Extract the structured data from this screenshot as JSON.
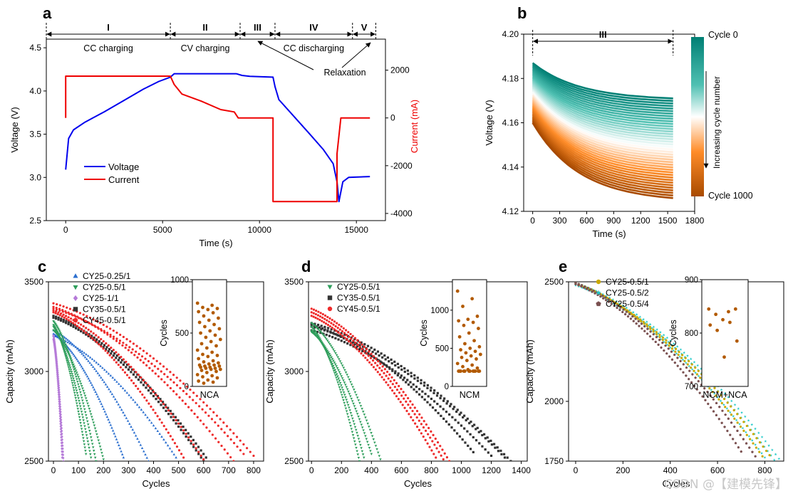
{
  "watermark": "CSDN @【建模先锋】",
  "chart_data": [
    {
      "id": "a",
      "panel_letter": "a",
      "type": "line",
      "xlabel": "Time (s)",
      "ylabel": "Voltage (V)",
      "y2label": "Current (mA)",
      "xlim": [
        -1000,
        16500
      ],
      "ylim": [
        2.5,
        4.6
      ],
      "y2lim": [
        -4300,
        3300
      ],
      "xticks": [
        0,
        5000,
        10000,
        15000
      ],
      "yticks": [
        2.5,
        3.0,
        3.5,
        4.0,
        4.5
      ],
      "y2ticks": [
        -4000,
        -2000,
        0,
        2000
      ],
      "phases": [
        {
          "label": "I",
          "desc": "CC charging",
          "range": [
            -1000,
            5400
          ]
        },
        {
          "label": "II",
          "desc": "CV charging",
          "range": [
            5400,
            9000
          ]
        },
        {
          "label": "III",
          "desc": "",
          "range": [
            9000,
            10800
          ]
        },
        {
          "label": "IV",
          "desc": "CC discharging",
          "range": [
            10800,
            14800
          ]
        },
        {
          "label": "V",
          "desc": "",
          "range": [
            14800,
            16000
          ]
        }
      ],
      "annotation": "Relaxation",
      "series": [
        {
          "name": "Voltage",
          "axis": "left",
          "color": "#0000ee",
          "x": [
            0,
            150,
            400,
            1000,
            2000,
            3000,
            4000,
            4800,
            5400,
            5600,
            6500,
            8800,
            9100,
            9500,
            10700,
            10800,
            11000,
            11800,
            12600,
            13300,
            13800,
            14000,
            14100,
            14300,
            14600,
            15700
          ],
          "y": [
            3.09,
            3.45,
            3.55,
            3.64,
            3.76,
            3.89,
            4.02,
            4.11,
            4.16,
            4.2,
            4.2,
            4.2,
            4.18,
            4.17,
            4.16,
            4.05,
            3.9,
            3.7,
            3.5,
            3.32,
            3.16,
            2.95,
            2.72,
            2.95,
            3.0,
            3.01
          ]
        },
        {
          "name": "Current",
          "axis": "right",
          "color": "#ee0000",
          "x": [
            0,
            0,
            5400,
            5600,
            6000,
            7000,
            8000,
            8700,
            8900,
            9000,
            10700,
            10700,
            14000,
            14000,
            14200,
            15700
          ],
          "y": [
            0,
            1750,
            1750,
            1400,
            1000,
            700,
            350,
            250,
            0,
            0,
            0,
            -3500,
            -3500,
            -1500,
            0,
            0
          ]
        }
      ]
    },
    {
      "id": "b",
      "panel_letter": "b",
      "type": "line",
      "xlabel": "Time (s)",
      "ylabel": "Voltage (V)",
      "xlim": [
        -100,
        1800
      ],
      "ylim": [
        4.12,
        4.2
      ],
      "xticks": [
        0,
        300,
        600,
        900,
        1200,
        1500,
        1800
      ],
      "yticks": [
        4.12,
        4.14,
        4.16,
        4.18,
        4.2
      ],
      "phase_label": "III",
      "colorbar": {
        "top": "Cycle 0",
        "bottom": "Cycle 1000",
        "caption": "Increasing cycle number",
        "colors": [
          "#007f74",
          "#4fc0b2",
          "#ffffff",
          "#ff8c28",
          "#a84a00"
        ]
      },
      "series_rule": {
        "count": 40,
        "cycle_range": [
          0,
          1000
        ],
        "start_voltage": [
          4.187,
          4.16
        ],
        "end_voltage": [
          4.171,
          4.126
        ],
        "x_end": 1560
      }
    },
    {
      "id": "c",
      "panel_letter": "c",
      "type": "scatter",
      "xlabel": "Cycles",
      "ylabel": "Capacity (mAh)",
      "xlim": [
        -20,
        840
      ],
      "ylim": [
        2500,
        3500
      ],
      "xticks": [
        0,
        100,
        200,
        300,
        400,
        500,
        600,
        700,
        800
      ],
      "yticks": [
        2500,
        3000,
        3500
      ],
      "legend": [
        {
          "name": "CY25-0.25/1",
          "color": "#2b6fcf",
          "marker": "triangle"
        },
        {
          "name": "CY25-0.5/1",
          "color": "#2e9e5b",
          "marker": "triangle-down"
        },
        {
          "name": "CY25-1/1",
          "color": "#b57ad8",
          "marker": "diamond"
        },
        {
          "name": "CY35-0.5/1",
          "color": "#333333",
          "marker": "square"
        },
        {
          "name": "CY45-0.5/1",
          "color": "#ee2b2b",
          "marker": "circle"
        }
      ],
      "cells": [
        {
          "series": 2,
          "start": 3200,
          "end_cycle": 40,
          "end_cap": 2500
        },
        {
          "series": 2,
          "start": 3180,
          "end_cycle": 35,
          "end_cap": 2520
        },
        {
          "series": 1,
          "start": 3280,
          "end_cycle": 170,
          "end_cap": 2500
        },
        {
          "series": 1,
          "start": 3250,
          "end_cycle": 150,
          "end_cap": 2520
        },
        {
          "series": 1,
          "start": 3230,
          "end_cycle": 200,
          "end_cap": 2510
        },
        {
          "series": 1,
          "start": 3260,
          "end_cycle": 130,
          "end_cap": 2540
        },
        {
          "series": 0,
          "start": 3230,
          "end_cycle": 380,
          "end_cap": 2500
        },
        {
          "series": 0,
          "start": 3200,
          "end_cycle": 490,
          "end_cap": 2520
        },
        {
          "series": 0,
          "start": 3210,
          "end_cycle": 280,
          "end_cap": 2520
        },
        {
          "series": 3,
          "start": 3300,
          "end_cycle": 600,
          "end_cap": 2500
        },
        {
          "series": 3,
          "start": 3310,
          "end_cycle": 610,
          "end_cap": 2520
        },
        {
          "series": 4,
          "start": 3380,
          "end_cycle": 800,
          "end_cap": 2530
        },
        {
          "series": 4,
          "start": 3360,
          "end_cycle": 720,
          "end_cap": 2500
        },
        {
          "series": 4,
          "start": 3340,
          "end_cycle": 600,
          "end_cap": 2510
        },
        {
          "series": 4,
          "start": 3350,
          "end_cycle": 760,
          "end_cap": 2540
        },
        {
          "series": 4,
          "start": 3330,
          "end_cycle": 520,
          "end_cap": 2520
        }
      ],
      "inset": {
        "xlabel": "NCA",
        "ylabel": "Cycles",
        "ylim": [
          0,
          1000
        ],
        "yticks": [
          0,
          500,
          1000
        ],
        "color": "#b25a00",
        "values": [
          780,
          760,
          740,
          730,
          720,
          700,
          690,
          660,
          640,
          620,
          600,
          580,
          560,
          540,
          520,
          500,
          480,
          460,
          440,
          420,
          400,
          380,
          360,
          340,
          320,
          300,
          290,
          280,
          260,
          240,
          230,
          220,
          210,
          200,
          200,
          190,
          190,
          180,
          180,
          170,
          170,
          160,
          160,
          150,
          140,
          130,
          110,
          100,
          90,
          80,
          60,
          50,
          40,
          30
        ]
      }
    },
    {
      "id": "d",
      "panel_letter": "d",
      "type": "scatter",
      "xlabel": "Cycles",
      "ylabel": "Capacity (mAh)",
      "xlim": [
        -20,
        1440
      ],
      "ylim": [
        2500,
        3500
      ],
      "xticks": [
        0,
        200,
        400,
        600,
        800,
        1000,
        1200,
        1400
      ],
      "yticks": [
        2500,
        3000,
        3500
      ],
      "legend": [
        {
          "name": "CY25-0.5/1",
          "color": "#2e9e5b",
          "marker": "triangle-down"
        },
        {
          "name": "CY35-0.5/1",
          "color": "#333333",
          "marker": "square"
        },
        {
          "name": "CY45-0.5/1",
          "color": "#ee2b2b",
          "marker": "circle"
        }
      ],
      "cells": [
        {
          "series": 0,
          "start": 3250,
          "end_cycle": 320,
          "end_cap": 2500
        },
        {
          "series": 0,
          "start": 3230,
          "end_cycle": 350,
          "end_cap": 2520
        },
        {
          "series": 0,
          "start": 3270,
          "end_cycle": 460,
          "end_cap": 2510
        },
        {
          "series": 0,
          "start": 3220,
          "end_cycle": 400,
          "end_cap": 2540
        },
        {
          "series": 1,
          "start": 3270,
          "end_cycle": 1330,
          "end_cap": 2500
        },
        {
          "series": 1,
          "start": 3250,
          "end_cycle": 1290,
          "end_cap": 2520
        },
        {
          "series": 1,
          "start": 3230,
          "end_cycle": 1200,
          "end_cap": 2530
        },
        {
          "series": 1,
          "start": 3260,
          "end_cycle": 1080,
          "end_cap": 2550
        },
        {
          "series": 2,
          "start": 3350,
          "end_cycle": 920,
          "end_cap": 2500
        },
        {
          "series": 2,
          "start": 3330,
          "end_cycle": 880,
          "end_cap": 2510
        },
        {
          "series": 2,
          "start": 3310,
          "end_cycle": 830,
          "end_cap": 2520
        }
      ],
      "inset": {
        "xlabel": "NCM",
        "ylabel": "Cycles",
        "ylim": [
          0,
          1400
        ],
        "yticks": [
          0,
          500,
          1000
        ],
        "color": "#b25a00",
        "values": [
          1250,
          1150,
          1050,
          920,
          880,
          860,
          840,
          800,
          760,
          700,
          650,
          600,
          560,
          520,
          500,
          480,
          460,
          440,
          420,
          400,
          380,
          360,
          340,
          300,
          280,
          260,
          240,
          220,
          200,
          200,
          200,
          200,
          200,
          200,
          200,
          200,
          200,
          200,
          200,
          200
        ]
      }
    },
    {
      "id": "e",
      "panel_letter": "e",
      "type": "scatter",
      "xlabel": "Cycles",
      "ylabel": "Capacity (mAh)",
      "xlim": [
        -30,
        880
      ],
      "ylim": [
        1750,
        2500
      ],
      "xticks": [
        0,
        200,
        400,
        600,
        800
      ],
      "yticks": [
        1750,
        2000,
        2500
      ],
      "legend": [
        {
          "name": "CY25-0.5/1",
          "color": "#c9a800",
          "marker": "circle"
        },
        {
          "name": "CY25-0.5/2",
          "color": "#1fc9c9",
          "marker": "star"
        },
        {
          "name": "CY25-0.5/4",
          "color": "#7a5050",
          "marker": "pentagon"
        }
      ],
      "cells": [
        {
          "series": 1,
          "start": 2490,
          "end_cycle": 840,
          "end_cap": 1755
        },
        {
          "series": 1,
          "start": 2485,
          "end_cycle": 800,
          "end_cap": 1765
        },
        {
          "series": 1,
          "start": 2495,
          "end_cycle": 860,
          "end_cap": 1760
        },
        {
          "series": 0,
          "start": 2490,
          "end_cycle": 820,
          "end_cap": 1775
        },
        {
          "series": 0,
          "start": 2495,
          "end_cycle": 790,
          "end_cap": 1770
        },
        {
          "series": 2,
          "start": 2495,
          "end_cycle": 760,
          "end_cap": 1770
        },
        {
          "series": 2,
          "start": 2490,
          "end_cycle": 700,
          "end_cap": 1790
        }
      ],
      "inset": {
        "xlabel": "NCM+NCA",
        "ylabel": "Cycles",
        "ylim": [
          700,
          900
        ],
        "yticks": [
          700,
          800,
          900
        ],
        "color": "#b25a00",
        "values": [
          845,
          840,
          835,
          845,
          825,
          815,
          820,
          805,
          785,
          755
        ]
      }
    }
  ]
}
